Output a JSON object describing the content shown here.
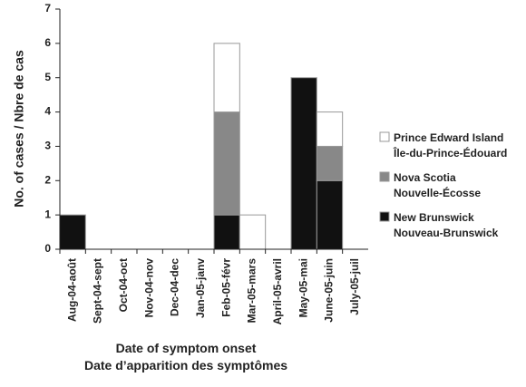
{
  "chart_data": {
    "type": "stacked_bar",
    "x_label": "Date of symptom onset\nDate d’apparition des symptômes",
    "y_label": "No. of cases / Nbre de cas",
    "categories": [
      "Aug-04-août",
      "Sept-04-sept",
      "Oct-04-oct",
      "Nov-04-nov",
      "Dec-04-dec",
      "Jan-05-janv",
      "Feb-05-févr",
      "Mar-05-mars",
      "April-05-avril",
      "May-05-mai",
      "June-05-juin",
      "July-05-juil"
    ],
    "series": [
      {
        "name": "Prince Edward Island\nÎle-du-Prince-Édouard",
        "color": "#ffffff",
        "values": [
          0,
          0,
          0,
          0,
          0,
          0,
          2,
          1,
          0,
          0,
          1,
          0
        ]
      },
      {
        "name": "Nova Scotia\nNouvelle-Écosse",
        "color": "#888888",
        "values": [
          0,
          0,
          0,
          0,
          0,
          0,
          3,
          0,
          0,
          0,
          1,
          0
        ]
      },
      {
        "name": "New Brunswick\nNouveau-Brunswick",
        "color": "#111111",
        "values": [
          1,
          0,
          0,
          0,
          0,
          0,
          1,
          0,
          0,
          5,
          2,
          0
        ]
      }
    ],
    "stack_order": "bottom_up_reverse_legend",
    "ylim": [
      0,
      7
    ],
    "yticks": [
      0,
      1,
      2,
      3,
      4,
      5,
      6,
      7
    ]
  }
}
